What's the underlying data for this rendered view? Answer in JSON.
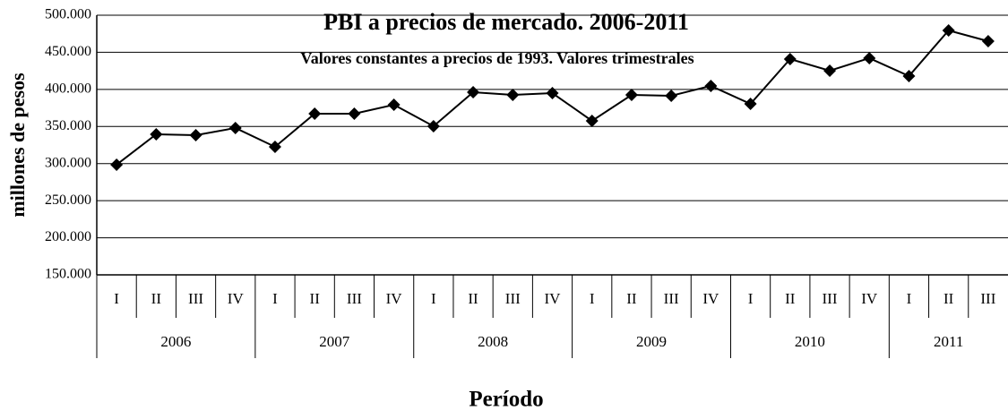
{
  "chart_data": {
    "type": "line",
    "title": "PBI a precios de mercado. 2006-2011",
    "subtitle": "Valores constantes a precios de 1993. Valores trimestrales",
    "y_label": "millones de pesos",
    "x_label": "Período",
    "groups": [
      {
        "label": "2006",
        "categories": [
          "I",
          "II",
          "III",
          "IV"
        ]
      },
      {
        "label": "2007",
        "categories": [
          "I",
          "II",
          "III",
          "IV"
        ]
      },
      {
        "label": "2008",
        "categories": [
          "I",
          "II",
          "III",
          "IV"
        ]
      },
      {
        "label": "2009",
        "categories": [
          "I",
          "II",
          "III",
          "IV"
        ]
      },
      {
        "label": "2010",
        "categories": [
          "I",
          "II",
          "III",
          "IV"
        ]
      },
      {
        "label": "2011",
        "categories": [
          "I",
          "II",
          "III"
        ]
      }
    ],
    "series": [
      {
        "color": "#000000",
        "marker": "diamond",
        "values": [
          298500,
          339500,
          338300,
          348000,
          322600,
          367300,
          367300,
          379300,
          350400,
          396200,
          392600,
          395000,
          357600,
          392600,
          391400,
          404700,
          380500,
          440900,
          425200,
          442100,
          418000,
          479500,
          465000
        ]
      }
    ],
    "ylim": [
      150000,
      500000
    ],
    "yticks": [
      {
        "value": 150000,
        "label": "150.000"
      },
      {
        "value": 200000,
        "label": "200.000"
      },
      {
        "value": 250000,
        "label": "250.000"
      },
      {
        "value": 300000,
        "label": "300.000"
      },
      {
        "value": 350000,
        "label": "350.000"
      },
      {
        "value": 400000,
        "label": "400.000"
      },
      {
        "value": 450000,
        "label": "450.000"
      },
      {
        "value": 500000,
        "label": "500.000"
      }
    ],
    "grid": true
  }
}
